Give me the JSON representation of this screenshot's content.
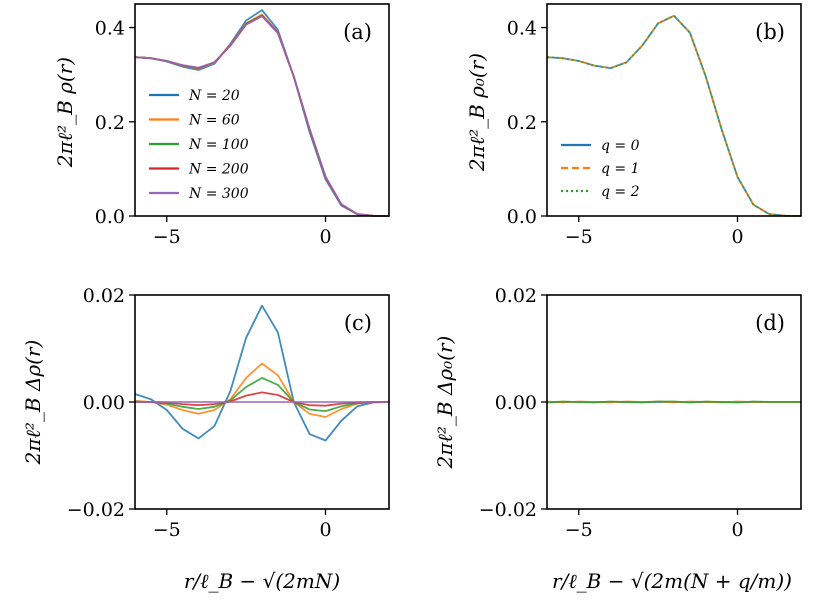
{
  "chart_data": [
    {
      "id": "a",
      "type": "line",
      "panel_label": "(a)",
      "ylabel": "2πℓ²_B ρ(r)",
      "xlabel": "",
      "xlim": [
        -6,
        2
      ],
      "ylim": [
        0,
        0.45
      ],
      "xticks": [
        -5,
        0
      ],
      "xtick_labels": [
        "−5",
        "0"
      ],
      "yticks": [
        0.0,
        0.2,
        0.4
      ],
      "ytick_labels": [
        "0.0",
        "0.2",
        "0.4"
      ],
      "legend_loc": "center-left",
      "x": [
        -6,
        -5.5,
        -5,
        -4.5,
        -4,
        -3.5,
        -3,
        -2.5,
        -2,
        -1.5,
        -1,
        -0.5,
        0,
        0.5,
        1,
        1.5,
        2
      ],
      "series": [
        {
          "name": "N = 20",
          "color": "#1f77b4",
          "style": "solid",
          "values": [
            0.337,
            0.335,
            0.328,
            0.317,
            0.31,
            0.323,
            0.365,
            0.415,
            0.437,
            0.395,
            0.295,
            0.178,
            0.078,
            0.022,
            0.004,
            0.0005,
            0.0
          ]
        },
        {
          "name": "N = 60",
          "color": "#ff7f0e",
          "style": "solid",
          "values": [
            0.337,
            0.335,
            0.329,
            0.319,
            0.313,
            0.325,
            0.363,
            0.409,
            0.428,
            0.39,
            0.296,
            0.183,
            0.082,
            0.024,
            0.004,
            0.0005,
            0.0
          ]
        },
        {
          "name": "N = 100",
          "color": "#2ca02c",
          "style": "solid",
          "values": [
            0.337,
            0.335,
            0.329,
            0.319,
            0.314,
            0.326,
            0.362,
            0.408,
            0.426,
            0.389,
            0.296,
            0.184,
            0.083,
            0.024,
            0.004,
            0.0005,
            0.0
          ]
        },
        {
          "name": "N = 200",
          "color": "#d62728",
          "style": "solid",
          "values": [
            0.337,
            0.335,
            0.329,
            0.32,
            0.314,
            0.326,
            0.362,
            0.407,
            0.425,
            0.389,
            0.296,
            0.184,
            0.083,
            0.024,
            0.004,
            0.0005,
            0.0
          ]
        },
        {
          "name": "N = 300",
          "color": "#9467bd",
          "style": "solid",
          "values": [
            0.337,
            0.335,
            0.329,
            0.32,
            0.315,
            0.326,
            0.361,
            0.406,
            0.424,
            0.388,
            0.296,
            0.185,
            0.084,
            0.025,
            0.004,
            0.0005,
            0.0
          ]
        }
      ]
    },
    {
      "id": "b",
      "type": "line",
      "panel_label": "(b)",
      "ylabel": "2πℓ²_B ρ₀(r)",
      "xlabel": "",
      "xlim": [
        -6,
        2
      ],
      "ylim": [
        0,
        0.45
      ],
      "xticks": [
        -5,
        0
      ],
      "xtick_labels": [
        "−5",
        "0"
      ],
      "yticks": [
        0.0,
        0.2,
        0.4
      ],
      "ytick_labels": [
        "0.0",
        "0.2",
        "0.4"
      ],
      "legend_loc": "center-left",
      "x": [
        -6,
        -5.5,
        -5,
        -4.5,
        -4,
        -3.5,
        -3,
        -2.5,
        -2,
        -1.5,
        -1,
        -0.5,
        0,
        0.5,
        1,
        1.5,
        2
      ],
      "series": [
        {
          "name": "q = 0",
          "color": "#1f77b4",
          "style": "solid",
          "values": [
            0.337,
            0.335,
            0.329,
            0.319,
            0.314,
            0.326,
            0.362,
            0.409,
            0.425,
            0.389,
            0.296,
            0.184,
            0.083,
            0.024,
            0.004,
            0.0005,
            0.0
          ]
        },
        {
          "name": "q = 1",
          "color": "#ff7f0e",
          "style": "dashed",
          "values": [
            0.337,
            0.335,
            0.329,
            0.319,
            0.314,
            0.326,
            0.362,
            0.409,
            0.425,
            0.389,
            0.296,
            0.184,
            0.083,
            0.024,
            0.004,
            0.0005,
            0.0
          ]
        },
        {
          "name": "q = 2",
          "color": "#2ca02c",
          "style": "dotted",
          "values": [
            0.337,
            0.335,
            0.329,
            0.319,
            0.314,
            0.326,
            0.362,
            0.409,
            0.425,
            0.389,
            0.296,
            0.184,
            0.083,
            0.024,
            0.004,
            0.0005,
            0.0
          ]
        }
      ]
    },
    {
      "id": "c",
      "type": "line",
      "panel_label": "(c)",
      "ylabel": "2πℓ²_B Δρ(r)",
      "xlabel": "r/ℓ_B − √(2mN)",
      "xlim": [
        -6,
        2
      ],
      "ylim": [
        -0.02,
        0.02
      ],
      "xticks": [
        -5,
        0
      ],
      "xtick_labels": [
        "−5",
        "0"
      ],
      "yticks": [
        -0.02,
        0.0,
        0.02
      ],
      "ytick_labels": [
        "−0.02",
        "0.00",
        "0.02"
      ],
      "x": [
        -6,
        -5.5,
        -5,
        -4.5,
        -4,
        -3.5,
        -3,
        -2.5,
        -2,
        -1.5,
        -1,
        -0.5,
        0,
        0.5,
        1,
        1.5,
        2
      ],
      "series": [
        {
          "name": "N = 20",
          "color": "#1f77b4",
          "style": "solid",
          "values": [
            0.0015,
            0.0005,
            -0.0015,
            -0.005,
            -0.0068,
            -0.0045,
            0.002,
            0.012,
            0.018,
            0.013,
            0.0,
            -0.006,
            -0.0072,
            -0.0035,
            -0.0008,
            -0.0001,
            0.0
          ]
        },
        {
          "name": "N = 60",
          "color": "#ff7f0e",
          "style": "solid",
          "values": [
            0.0002,
            0.0,
            -0.0005,
            -0.0015,
            -0.0022,
            -0.0015,
            0.0005,
            0.0045,
            0.0072,
            0.005,
            0.0,
            -0.0022,
            -0.0028,
            -0.0013,
            -0.0003,
            0.0,
            0.0
          ]
        },
        {
          "name": "N = 100",
          "color": "#2ca02c",
          "style": "solid",
          "values": [
            0.0001,
            0.0,
            -0.0003,
            -0.0009,
            -0.0013,
            -0.0009,
            0.0003,
            0.0028,
            0.0045,
            0.0032,
            0.0,
            -0.0014,
            -0.0017,
            -0.0008,
            -0.0002,
            0.0,
            0.0
          ]
        },
        {
          "name": "N = 200",
          "color": "#d62728",
          "style": "solid",
          "values": [
            0.0,
            0.0,
            -0.0001,
            -0.0004,
            -0.0006,
            -0.0004,
            0.0001,
            0.0012,
            0.0018,
            0.0013,
            0.0,
            -0.0006,
            -0.0007,
            -0.0003,
            -0.0001,
            0.0,
            0.0
          ]
        },
        {
          "name": "N = 300",
          "color": "#9467bd",
          "style": "solid",
          "values": [
            0,
            0,
            0,
            0,
            0,
            0,
            0,
            0,
            0,
            0,
            0,
            0,
            0,
            0,
            0,
            0,
            0
          ]
        }
      ]
    },
    {
      "id": "d",
      "type": "line",
      "panel_label": "(d)",
      "ylabel": "2πℓ²_B Δρ₀(r)",
      "xlabel": "r/ℓ_B − √(2m(N + q/m))",
      "xlim": [
        -6,
        2
      ],
      "ylim": [
        -0.02,
        0.02
      ],
      "xticks": [
        -5,
        0
      ],
      "xtick_labels": [
        "−5",
        "0"
      ],
      "yticks": [
        -0.02,
        0.0,
        0.02
      ],
      "ytick_labels": [
        "−0.02",
        "0.00",
        "0.02"
      ],
      "x": [
        -6,
        -5.5,
        -5,
        -4.5,
        -4,
        -3.5,
        -3,
        -2.5,
        -2,
        -1.5,
        -1,
        -0.5,
        0,
        0.5,
        1,
        1.5,
        2
      ],
      "series": [
        {
          "name": "q = 0",
          "color": "#1f77b4",
          "style": "solid",
          "values": [
            0,
            0,
            0,
            0,
            0,
            0,
            0,
            0,
            0,
            0,
            0,
            0,
            0,
            0,
            0,
            0,
            0
          ]
        },
        {
          "name": "q = 1",
          "color": "#ff7f0e",
          "style": "solid",
          "values": [
            0.0001,
            -0.0001,
            0.0001,
            0.0,
            -0.0001,
            0.0001,
            0.0,
            0.0001,
            -0.0001,
            0.0001,
            0.0,
            -0.0001,
            0.0001,
            0.0,
            0.0,
            0.0,
            0.0
          ]
        },
        {
          "name": "q = 2",
          "color": "#2ca02c",
          "style": "solid",
          "values": [
            -0.0001,
            0.0001,
            0.0,
            -0.0001,
            0.0001,
            0.0,
            -0.0001,
            0.0001,
            0.0001,
            -0.0001,
            0.0001,
            0.0,
            -0.0001,
            0.0001,
            0.0,
            0.0,
            0.0
          ]
        }
      ]
    }
  ]
}
